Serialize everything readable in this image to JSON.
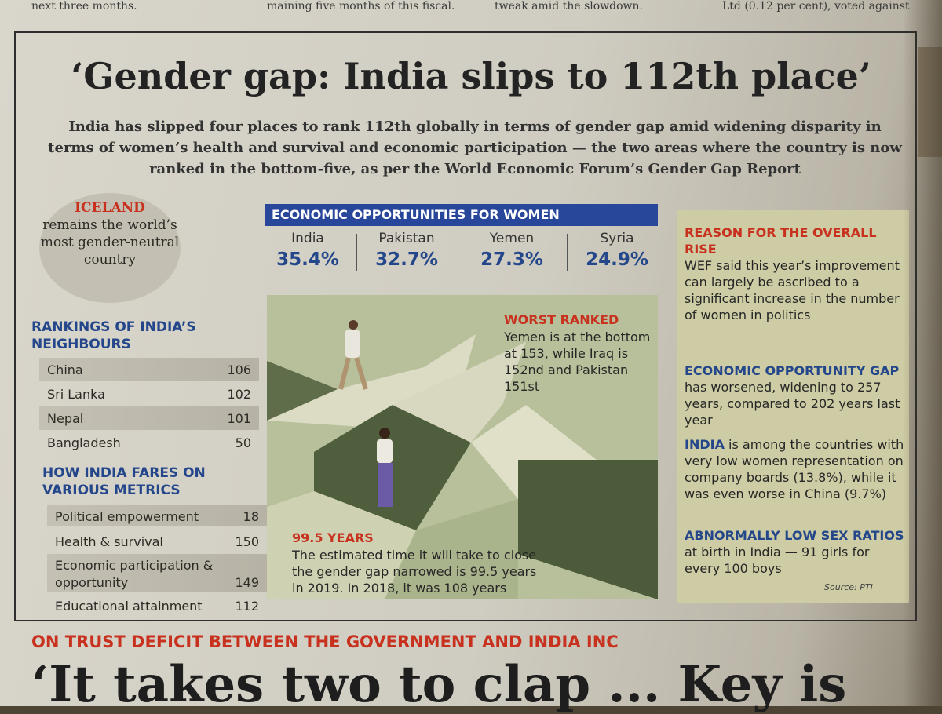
{
  "top_snippets": [
    "next three months.",
    "maining five months of this fiscal.",
    "tweak amid the slowdown.",
    "Ltd (0.12 per cent), voted against"
  ],
  "title": "‘Gender gap: India slips to 112th place’",
  "intro": "India has slipped four places to rank 112th globally in terms of gender gap amid widening disparity in terms of women’s health and survival and economic participation — the two areas where the country is now ranked in the bottom-five, as per the World Economic Forum’s Gender Gap Report",
  "iceland": {
    "headline": "ICELAND",
    "text": "remains the world’s most gender-neutral country"
  },
  "neighbours": {
    "heading": "RANKINGS OF INDIA’S NEIGHBOURS",
    "rows": [
      {
        "country": "China",
        "rank": "106"
      },
      {
        "country": "Sri Lanka",
        "rank": "102"
      },
      {
        "country": "Nepal",
        "rank": "101"
      },
      {
        "country": "Bangladesh",
        "rank": "50"
      }
    ]
  },
  "metrics": {
    "heading": "HOW INDIA FARES ON VARIOUS METRICS",
    "rows": [
      {
        "metric": "Political empowerment",
        "rank": "18"
      },
      {
        "metric": "Health & survival",
        "rank": "150"
      },
      {
        "metric": "Economic participation & opportunity",
        "rank": "149"
      },
      {
        "metric": "Educational attainment",
        "rank": "112"
      }
    ]
  },
  "economic": {
    "heading": "ECONOMIC OPPORTUNITIES FOR WOMEN",
    "items": [
      {
        "country": "India",
        "value": "35.4%"
      },
      {
        "country": "Pakistan",
        "value": "32.7%"
      },
      {
        "country": "Yemen",
        "value": "27.3%"
      },
      {
        "country": "Syria",
        "value": "24.9%"
      }
    ]
  },
  "worst": {
    "heading": "WORST RANKED",
    "text": "Yemen is at the bottom at 153, while Iraq is 152nd and Pakistan 151st"
  },
  "years": {
    "heading": "99.5 YEARS",
    "text": "The estimated time it will take to close the gender gap narrowed is 99.5 years in 2019. In 2018, it was 108 years"
  },
  "reason": {
    "heading": "REASON FOR THE OVERALL RISE",
    "text": "WEF said this year’s improvement can largely be ascribed to a significant increase in the number of women in politics"
  },
  "econ_gap": {
    "lead": "ECONOMIC OPPORTUNITY GAP",
    "text": " has worsened, widening to 257 years, compared to 202 years last year"
  },
  "india_boards": {
    "lead": "INDIA",
    "text": " is among the countries with very low women representation on company boards (13.8%), while it was even worse in China (9.7%)"
  },
  "sex_ratio": {
    "lead": "ABNORMALLY LOW SEX RATIOS",
    "text": " at birth in India — 91 girls for every 100 boys"
  },
  "source": "Source: PTI",
  "bottom": {
    "kicker": "ON TRUST DEFICIT BETWEEN THE GOVERNMENT AND INDIA INC",
    "headline": "‘It takes two to clap ... Key is"
  },
  "colors": {
    "accent_red": "#c8311e",
    "accent_blue": "#24468a",
    "bar_blue": "#28479a"
  }
}
